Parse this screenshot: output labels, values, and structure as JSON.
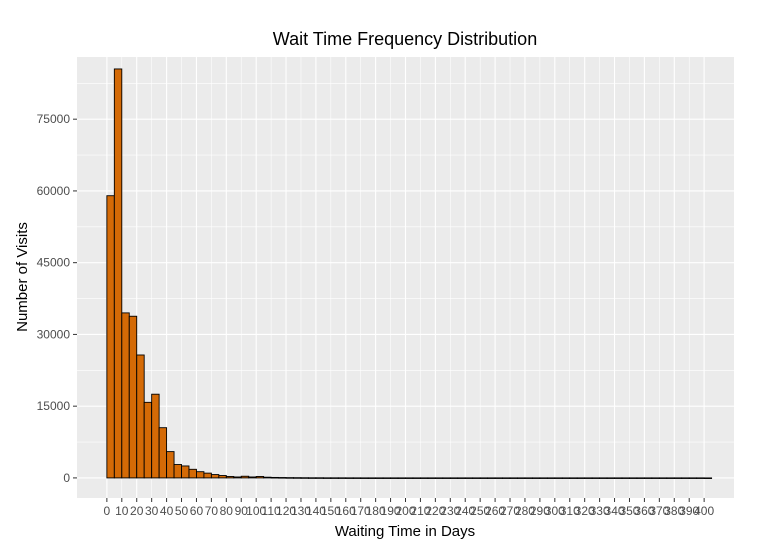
{
  "chart_data": {
    "type": "bar",
    "title": "Wait Time Frequency Distribution",
    "xlabel": "Waiting Time in Days",
    "ylabel": "Number of Visits",
    "x_ticks": [
      "0",
      "20",
      "40",
      "60",
      "80",
      "100",
      "120",
      "140",
      "160",
      "180",
      "200",
      "220",
      "240",
      "260",
      "280",
      "300",
      "320",
      "340",
      "360",
      "380",
      "400"
    ],
    "x_tick_values": [
      0,
      10,
      20,
      30,
      40,
      50,
      60,
      70,
      80,
      90,
      100,
      110,
      120,
      130,
      140,
      150,
      160,
      170,
      180,
      190,
      200,
      210,
      220,
      230,
      240,
      250,
      260,
      270,
      280,
      290,
      300,
      310,
      320,
      330,
      340,
      350,
      360,
      370,
      380,
      390,
      400
    ],
    "x_tick_labels": [
      "0",
      "10",
      "20",
      "30",
      "40",
      "50",
      "60",
      "70",
      "80",
      "90",
      "100",
      "110",
      "120",
      "130",
      "140",
      "150",
      "160",
      "170",
      "180",
      "190",
      "200",
      "210",
      "220",
      "230",
      "240",
      "250",
      "260",
      "270",
      "280",
      "290",
      "300",
      "310",
      "320",
      "330",
      "340",
      "350",
      "360",
      "370",
      "380",
      "390",
      "400"
    ],
    "y_ticks": [
      "0",
      "15000",
      "30000",
      "45000",
      "60000",
      "75000"
    ],
    "y_tick_values": [
      0,
      15000,
      30000,
      45000,
      60000,
      75000
    ],
    "xlim": [
      -20,
      420
    ],
    "ylim": [
      -4200,
      88000
    ],
    "bin_width": 5,
    "bin_starts": [
      0,
      5,
      10,
      15,
      20,
      25,
      30,
      35,
      40,
      45,
      50,
      55,
      60,
      65,
      70,
      75,
      80,
      85,
      90,
      95,
      100,
      105,
      110,
      115,
      120,
      125,
      130,
      135,
      140,
      145,
      150,
      155,
      160,
      165,
      170,
      175,
      180,
      185,
      190,
      195,
      200,
      205,
      210,
      215,
      220,
      225,
      230,
      235,
      240,
      245,
      250,
      255,
      260,
      265,
      270,
      275,
      280,
      285,
      290,
      295,
      300,
      305,
      310,
      315,
      320,
      325,
      330,
      335,
      340,
      345,
      350,
      355,
      360,
      365,
      370,
      375,
      380,
      385,
      390,
      395,
      400
    ],
    "values": [
      59000,
      85500,
      34500,
      33800,
      25700,
      15800,
      17500,
      10500,
      5500,
      2800,
      2500,
      1800,
      1300,
      1000,
      700,
      500,
      300,
      200,
      350,
      200,
      300,
      150,
      100,
      80,
      60,
      50,
      40,
      30,
      30,
      20,
      20,
      20,
      15,
      15,
      10,
      10,
      10,
      10,
      10,
      10,
      10,
      10,
      10,
      10,
      10,
      10,
      10,
      10,
      10,
      10,
      10,
      10,
      10,
      10,
      10,
      10,
      10,
      10,
      10,
      10,
      10,
      10,
      10,
      10,
      10,
      10,
      10,
      10,
      10,
      10,
      10,
      10,
      10,
      10,
      10,
      10,
      10,
      10,
      10,
      10,
      0
    ],
    "colors": {
      "bar_fill": "#d46a06",
      "bar_stroke": "#000000",
      "panel_bg": "#ebebeb",
      "grid": "#ffffff"
    },
    "grid": true,
    "legend": "none"
  }
}
